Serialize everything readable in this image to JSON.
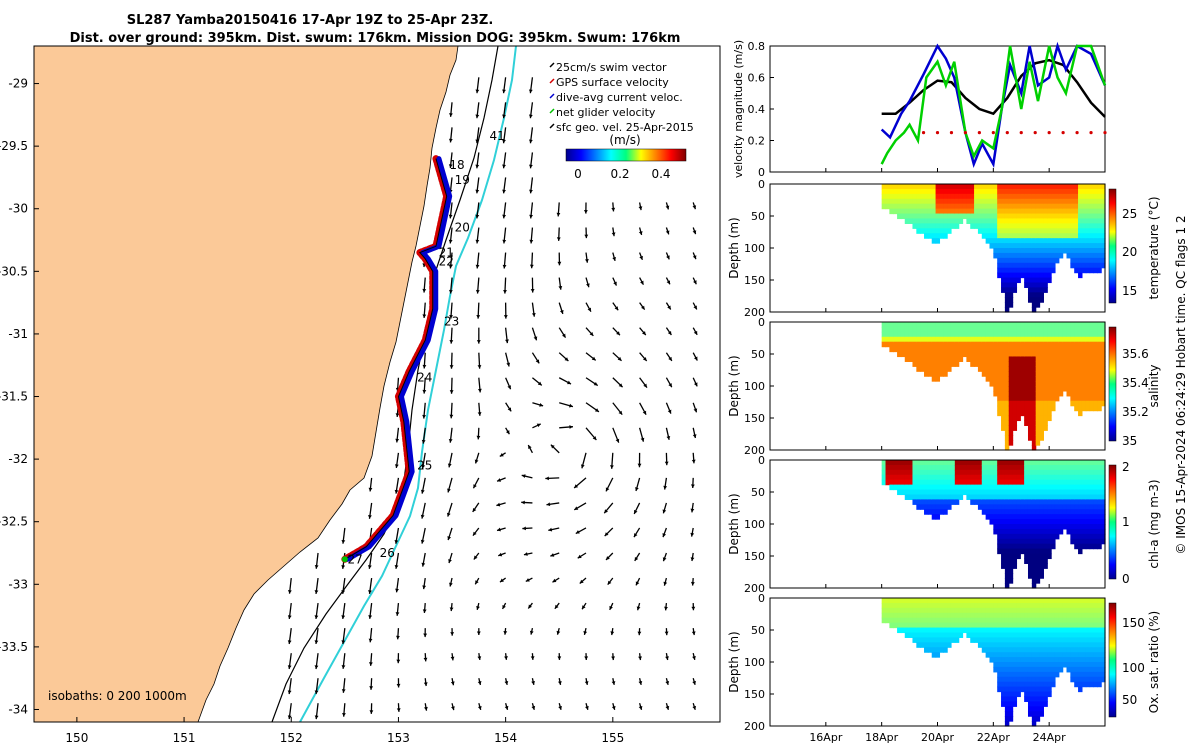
{
  "header": {
    "title_line1": "SL287 Yamba20150416 17-Apr 19Z to 25-Apr 23Z.",
    "title_line2": "Dist. over ground: 395km. Dist. swum: 176km. Mission DOG: 395km. Swum: 176km"
  },
  "map": {
    "x_ticks": [
      "150",
      "151",
      "152",
      "153",
      "154",
      "155"
    ],
    "y_ticks": [
      "-29",
      "-29.5",
      "-30",
      "-30.5",
      "-31",
      "-31.5",
      "-32",
      "-32.5",
      "-33",
      "-33.5",
      "-34"
    ],
    "legend": [
      {
        "label": "25cm/s swim vector",
        "color": "#000000"
      },
      {
        "label": "GPS surface velocity",
        "color": "#d40000"
      },
      {
        "label": "dive-avg current veloc.",
        "color": "#0000d0"
      },
      {
        "label": "net glider velocity",
        "color": "#00c000"
      },
      {
        "label": "sfc geo. vel. 25-Apr-2015",
        "color": "#000000"
      }
    ],
    "colorbar_unit": "(m/s)",
    "colorbar_ticks": [
      "0",
      "0.2",
      "0.4"
    ],
    "day_labels": [
      "18",
      "19",
      "20",
      "21",
      "22",
      "23",
      "24",
      "25",
      "26",
      "27",
      "41"
    ],
    "isobaths_label": "isobaths: 0   200  1000m",
    "colors": {
      "land": "#fbc998",
      "isobath_1000": "#30d0d8"
    }
  },
  "panels": {
    "velocity": {
      "ylabel": "velocity magnitude (m/s)",
      "y_ticks": [
        "0",
        "0.2",
        "0.4",
        "0.6",
        "0.8"
      ]
    },
    "temperature": {
      "ylabel": "Depth (m)",
      "cbar_label": "temperature (°C)",
      "cbar_ticks": [
        "15",
        "20",
        "25"
      ]
    },
    "salinity": {
      "ylabel": "Depth (m)",
      "cbar_label": "salinity",
      "cbar_ticks": [
        "35",
        "35.2",
        "35.4",
        "35.6"
      ]
    },
    "chla": {
      "ylabel": "Depth (m)",
      "cbar_label": "chl-a (mg m-3)",
      "cbar_ticks": [
        "0",
        "1",
        "2"
      ]
    },
    "oxygen": {
      "ylabel": "Depth (m)",
      "cbar_label": "Ox. sat. ratio (%)",
      "cbar_ticks": [
        "50",
        "100",
        "150"
      ]
    },
    "depth_ticks": [
      "0",
      "50",
      "100",
      "150",
      "200"
    ],
    "time_ticks": [
      "16Apr",
      "18Apr",
      "20Apr",
      "22Apr",
      "24Apr"
    ]
  },
  "footer_vertical": "© IMOS 15-Apr-2024 06:24:29 Hobart time. QC flags 1  2",
  "chart_data": [
    {
      "type": "scatter",
      "title": "SL287 Yamba20150416 17-Apr 19Z to 25-Apr 23Z.",
      "xlim": [
        149.6,
        156.0
      ],
      "ylim": [
        -34.1,
        -28.7
      ],
      "x_ticks": [
        150,
        151,
        152,
        153,
        154,
        155
      ],
      "y_ticks": [
        -29,
        -29.5,
        -30,
        -30.5,
        -31,
        -31.5,
        -32,
        -32.5,
        -33,
        -33.5,
        -34
      ],
      "track": [
        [
          153.35,
          -29.6
        ],
        [
          153.45,
          -29.9
        ],
        [
          153.35,
          -30.3
        ],
        [
          153.2,
          -30.35
        ],
        [
          153.25,
          -30.4
        ],
        [
          153.32,
          -30.5
        ],
        [
          153.32,
          -30.8
        ],
        [
          153.25,
          -31.05
        ],
        [
          153.1,
          -31.3
        ],
        [
          153.0,
          -31.5
        ],
        [
          153.05,
          -31.7
        ],
        [
          153.1,
          -32.1
        ],
        [
          152.95,
          -32.45
        ],
        [
          152.7,
          -32.7
        ],
        [
          152.5,
          -32.8
        ]
      ],
      "day_markers": [
        {
          "label": "18",
          "lon": 153.4,
          "lat": -29.65
        },
        {
          "label": "19",
          "lon": 153.45,
          "lat": -29.77
        },
        {
          "label": "20",
          "lon": 153.45,
          "lat": -30.15
        },
        {
          "label": "21",
          "lon": 153.3,
          "lat": -30.35
        },
        {
          "label": "22",
          "lon": 153.3,
          "lat": -30.42
        },
        {
          "label": "23",
          "lon": 153.35,
          "lat": -30.9
        },
        {
          "label": "24",
          "lon": 153.1,
          "lat": -31.35
        },
        {
          "label": "25",
          "lon": 153.1,
          "lat": -32.05
        },
        {
          "label": "26",
          "lon": 152.75,
          "lat": -32.75
        },
        {
          "label": "27",
          "lon": 152.45,
          "lat": -32.8
        }
      ]
    },
    {
      "type": "line",
      "ylabel": "velocity magnitude (m/s)",
      "ylim": [
        0,
        0.8
      ],
      "x_ticks": [
        "16Apr",
        "18Apr",
        "20Apr",
        "22Apr",
        "24Apr"
      ],
      "x_days": [
        16,
        18,
        20,
        22,
        24
      ],
      "xlim": [
        14.0,
        26.0
      ],
      "series": [
        {
          "color": "#000000",
          "x": [
            18.0,
            18.5,
            19.0,
            19.5,
            20.0,
            20.5,
            21.0,
            21.5,
            22.0,
            22.5,
            23.0,
            23.5,
            24.0,
            24.5,
            25.0,
            25.5,
            26.0
          ],
          "values": [
            0.37,
            0.37,
            0.44,
            0.52,
            0.58,
            0.57,
            0.47,
            0.4,
            0.37,
            0.47,
            0.61,
            0.69,
            0.71,
            0.68,
            0.57,
            0.44,
            0.35
          ]
        },
        {
          "color": "#0000d0",
          "x": [
            18.0,
            18.3,
            18.7,
            19.0,
            19.5,
            20.0,
            20.3,
            20.6,
            21.0,
            21.3,
            21.6,
            22.0,
            22.3,
            22.6,
            23.0,
            23.3,
            23.6,
            24.0,
            24.3,
            24.6,
            25.0,
            25.5,
            26.0
          ],
          "values": [
            0.27,
            0.22,
            0.37,
            0.45,
            0.62,
            0.8,
            0.72,
            0.6,
            0.25,
            0.05,
            0.18,
            0.05,
            0.4,
            0.68,
            0.5,
            0.8,
            0.55,
            0.6,
            0.8,
            0.65,
            0.8,
            0.75,
            0.55
          ]
        },
        {
          "color": "#00d000",
          "x": [
            18.0,
            18.2,
            18.5,
            18.8,
            19.0,
            19.3,
            19.6,
            20.0,
            20.3,
            20.6,
            21.0,
            21.3,
            21.6,
            22.0,
            22.3,
            22.6,
            23.0,
            23.3,
            23.6,
            24.0,
            24.3,
            24.6,
            25.0,
            25.5,
            26.0
          ],
          "values": [
            0.05,
            0.12,
            0.2,
            0.25,
            0.3,
            0.2,
            0.6,
            0.7,
            0.55,
            0.7,
            0.25,
            0.1,
            0.2,
            0.15,
            0.4,
            0.8,
            0.4,
            0.7,
            0.45,
            0.8,
            0.6,
            0.5,
            0.8,
            0.8,
            0.55
          ]
        },
        {
          "color": "#d40000",
          "x": [
            19.5,
            20.0,
            20.5,
            21.0,
            21.5,
            22.0,
            22.5,
            23.0,
            23.5,
            24.0,
            24.5,
            25.0,
            25.5,
            26.0
          ],
          "values": [
            0.25,
            0.25,
            0.25,
            0.25,
            0.25,
            0.25,
            0.25,
            0.25,
            0.25,
            0.25,
            0.25,
            0.25,
            0.25,
            0.25
          ]
        }
      ]
    },
    {
      "type": "heatmap",
      "name": "temperature",
      "ylabel": "Depth (m)",
      "ylim": [
        200,
        0
      ],
      "clim": [
        13,
        28
      ],
      "x_ticks": [
        "16Apr",
        "18Apr",
        "20Apr",
        "22Apr",
        "24Apr"
      ],
      "max_depth_profile": {
        "x": [
          18,
          19,
          20,
          21,
          22,
          22.5,
          23,
          23.5,
          24,
          24.5,
          25,
          26
        ],
        "depth": [
          30,
          60,
          90,
          50,
          100,
          200,
          140,
          200,
          150,
          100,
          140,
          130
        ]
      }
    },
    {
      "type": "heatmap",
      "name": "salinity",
      "ylabel": "Depth (m)",
      "ylim": [
        200,
        0
      ],
      "clim": [
        35.0,
        35.75
      ],
      "x_ticks": [
        "16Apr",
        "18Apr",
        "20Apr",
        "22Apr",
        "24Apr"
      ]
    },
    {
      "type": "heatmap",
      "name": "chl-a",
      "ylabel": "Depth (m)",
      "ylim": [
        200,
        0
      ],
      "clim": [
        0,
        2
      ],
      "x_ticks": [
        "16Apr",
        "18Apr",
        "20Apr",
        "22Apr",
        "24Apr"
      ]
    },
    {
      "type": "heatmap",
      "name": "oxygen saturation",
      "ylabel": "Depth (m)",
      "ylim": [
        200,
        0
      ],
      "clim": [
        20,
        175
      ],
      "x_ticks": [
        "16Apr",
        "18Apr",
        "20Apr",
        "22Apr",
        "24Apr"
      ]
    }
  ]
}
